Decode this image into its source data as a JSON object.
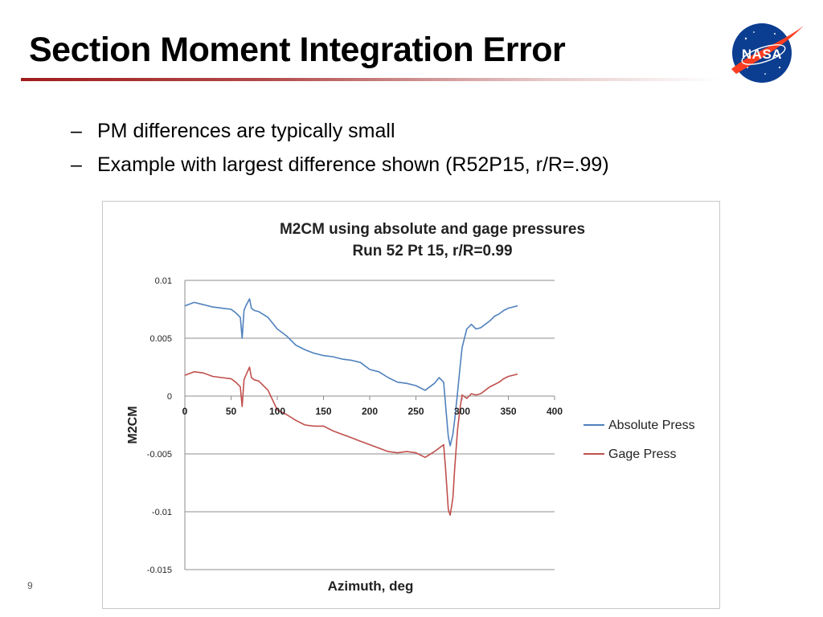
{
  "slide": {
    "title": "Section Moment Integration Error",
    "bullets": [
      "PM differences are typically small",
      "Example with largest difference shown (R52P15, r/R=.99)"
    ],
    "bullet_marker": "–",
    "page_number": "9",
    "logo_text": "NASA",
    "accent_color": "#a01c1c"
  },
  "chart_data": {
    "type": "line",
    "title": "M2CM using absolute and gage pressures",
    "subtitle": "Run 52 Pt 15, r/R=0.99",
    "xlabel": "Azimuth, deg",
    "ylabel": "M2CM",
    "xlim": [
      0,
      400
    ],
    "ylim": [
      -0.015,
      0.01
    ],
    "xticks": [
      "0",
      "50",
      "100",
      "150",
      "200",
      "250",
      "300",
      "350",
      "400"
    ],
    "yticks": [
      "0.01",
      "0.005",
      "0",
      "-0.005",
      "-0.01",
      "-0.015"
    ],
    "grid": true,
    "legend_position": "right",
    "series": [
      {
        "name": "Absolute Press",
        "color": "#4f81bd",
        "x": [
          0,
          10,
          20,
          30,
          40,
          50,
          55,
          60,
          62,
          64,
          66,
          70,
          72,
          75,
          80,
          90,
          100,
          110,
          120,
          130,
          140,
          150,
          160,
          170,
          180,
          190,
          200,
          210,
          220,
          230,
          240,
          250,
          260,
          270,
          275,
          280,
          282,
          285,
          287,
          290,
          292,
          295,
          298,
          300,
          305,
          310,
          315,
          320,
          325,
          330,
          335,
          340,
          345,
          350,
          355,
          360
        ],
        "values": [
          0.0078,
          0.0081,
          0.0079,
          0.0077,
          0.0076,
          0.0075,
          0.0072,
          0.0068,
          0.005,
          0.0074,
          0.0078,
          0.0084,
          0.0076,
          0.0074,
          0.0073,
          0.0068,
          0.0058,
          0.0052,
          0.0044,
          0.004,
          0.0037,
          0.0035,
          0.0034,
          0.0032,
          0.0031,
          0.0029,
          0.0023,
          0.0021,
          0.0016,
          0.0012,
          0.0011,
          0.0009,
          0.0005,
          0.0011,
          0.0016,
          0.0012,
          -0.0007,
          -0.0035,
          -0.0043,
          -0.0033,
          -0.002,
          0.0003,
          0.0027,
          0.0042,
          0.0058,
          0.0062,
          0.0058,
          0.0059,
          0.0062,
          0.0065,
          0.0069,
          0.0071,
          0.0074,
          0.0076,
          0.0077,
          0.0078
        ]
      },
      {
        "name": "Gage Press",
        "color": "#c0504d",
        "x": [
          0,
          10,
          20,
          30,
          40,
          50,
          55,
          60,
          62,
          64,
          66,
          70,
          72,
          75,
          80,
          90,
          100,
          110,
          120,
          130,
          140,
          150,
          160,
          170,
          180,
          190,
          200,
          210,
          220,
          230,
          240,
          250,
          260,
          270,
          275,
          280,
          282,
          285,
          287,
          290,
          292,
          295,
          298,
          300,
          305,
          310,
          315,
          320,
          325,
          330,
          335,
          340,
          345,
          350,
          355,
          360
        ],
        "values": [
          0.0018,
          0.0021,
          0.002,
          0.0017,
          0.0016,
          0.0015,
          0.0012,
          0.0008,
          -0.0009,
          0.0014,
          0.0018,
          0.0025,
          0.0016,
          0.0014,
          0.0013,
          0.0005,
          -0.0012,
          -0.0016,
          -0.0021,
          -0.0025,
          -0.0026,
          -0.0026,
          -0.003,
          -0.0033,
          -0.0036,
          -0.0039,
          -0.0042,
          -0.0045,
          -0.0048,
          -0.0049,
          -0.0048,
          -0.0049,
          -0.0053,
          -0.0048,
          -0.0045,
          -0.0042,
          -0.0062,
          -0.0098,
          -0.0103,
          -0.0088,
          -0.0062,
          -0.0029,
          -0.0009,
          0.0001,
          -0.0002,
          0.0002,
          0.0001,
          0.0002,
          0.0005,
          0.0008,
          0.001,
          0.0012,
          0.0015,
          0.0017,
          0.0018,
          0.0019
        ]
      }
    ]
  }
}
